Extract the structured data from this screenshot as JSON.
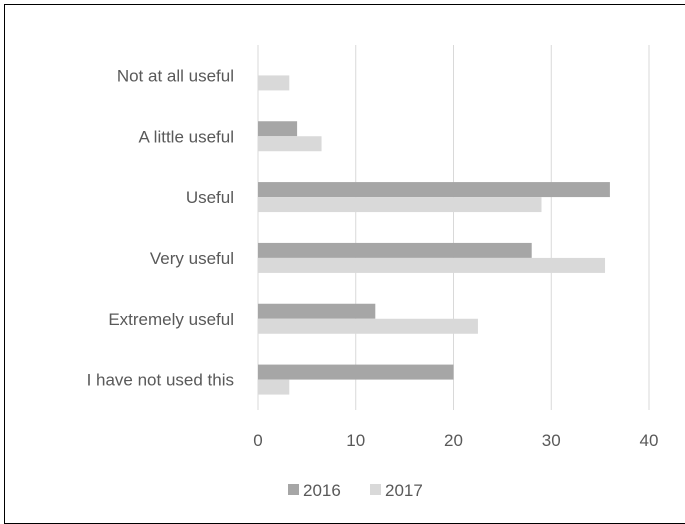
{
  "chart_data": {
    "type": "bar",
    "orientation": "horizontal",
    "categories": [
      "Not at all useful",
      "A little useful",
      "Useful",
      "Very useful",
      "Extremely useful",
      "I have not used this"
    ],
    "series": [
      {
        "name": "2016",
        "color": "#a6a6a6",
        "values": [
          0,
          4,
          36,
          28,
          12,
          20
        ]
      },
      {
        "name": "2017",
        "color": "#d9d9d9",
        "values": [
          3.2,
          6.5,
          29,
          35.5,
          22.5,
          3.2
        ]
      }
    ],
    "title": "",
    "xlabel": "",
    "ylabel": "",
    "xlim": [
      0,
      40
    ],
    "ticks": [
      "0",
      "10",
      "20",
      "30",
      "40"
    ],
    "grid": "vertical",
    "legend": "bottom"
  }
}
